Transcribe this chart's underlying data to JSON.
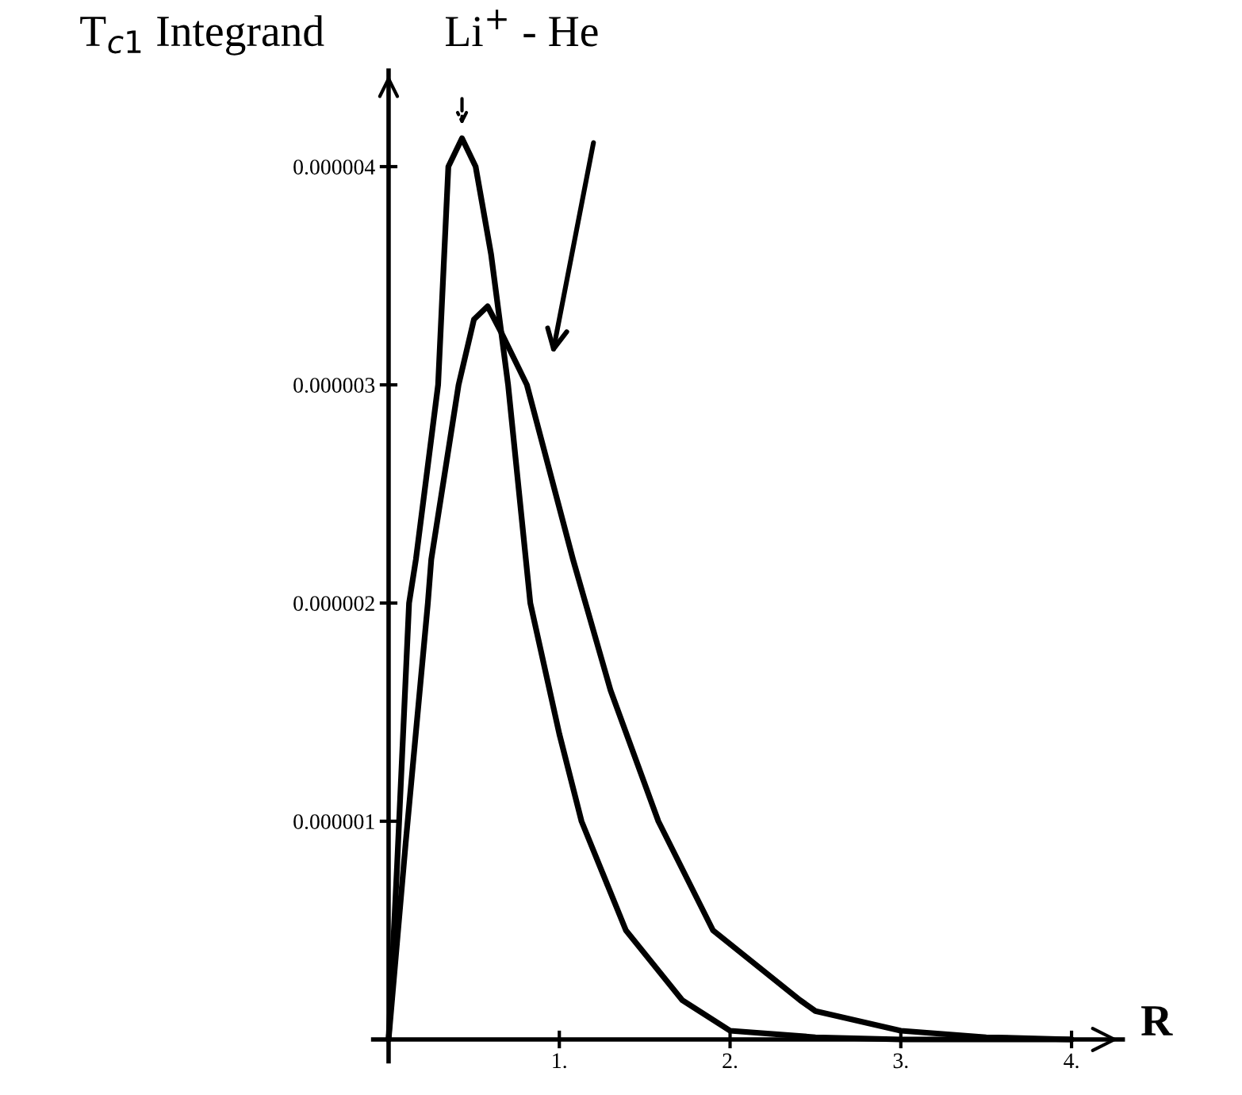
{
  "chart_data": {
    "type": "line",
    "ylabel": "T$_{c1}$ Integrand",
    "xlabel": "R",
    "annotations": [
      "Li$^{+}$ - He"
    ],
    "series": [
      {
        "color": "#000000",
        "x": [
          0,
          0.05,
          0.12,
          0.16,
          0.29,
          0.35,
          0.43,
          0.51,
          0.6,
          0.7,
          0.83,
          1.0,
          1.13,
          1.39,
          1.72,
          2.0,
          2.5,
          3.0,
          4.0
        ],
        "values": [
          0,
          8e-07,
          2e-06,
          2.2e-06,
          3e-06,
          4e-06,
          4.13e-06,
          4e-06,
          3.6e-06,
          3e-06,
          2e-06,
          1.4e-06,
          1e-06,
          5e-07,
          1.8e-07,
          4e-08,
          1e-08,
          0,
          0
        ]
      },
      {
        "color": "#000000",
        "x": [
          0,
          0.1,
          0.23,
          0.25,
          0.41,
          0.5,
          0.58,
          0.66,
          0.81,
          1.08,
          1.3,
          1.58,
          1.9,
          2.41,
          2.5,
          3.0,
          3.5,
          4.0
        ],
        "values": [
          0,
          9e-07,
          2e-06,
          2.2e-06,
          3e-06,
          3.3e-06,
          3.36e-06,
          3.24e-06,
          3e-06,
          2.2e-06,
          1.6e-06,
          1e-06,
          5e-07,
          1.8e-07,
          1.3e-07,
          4e-08,
          1e-08,
          0
        ]
      }
    ],
    "xlim": [
      -0.09,
      4.3
    ],
    "ylim": [
      -1e-07,
      4.44e-06
    ],
    "xticks": [
      {
        "value": 1,
        "label": "1."
      },
      {
        "value": 2,
        "label": "2."
      },
      {
        "value": 3,
        "label": "3."
      },
      {
        "value": 4,
        "label": "4."
      }
    ],
    "yticks": [
      {
        "value": 1e-06,
        "label": "0.000001"
      },
      {
        "value": 2e-06,
        "label": "0.000002"
      },
      {
        "value": 3e-06,
        "label": "0.000003"
      },
      {
        "value": 4e-06,
        "label": "0.000004"
      }
    ],
    "line_style": "solid",
    "grid": false,
    "legend": false
  }
}
